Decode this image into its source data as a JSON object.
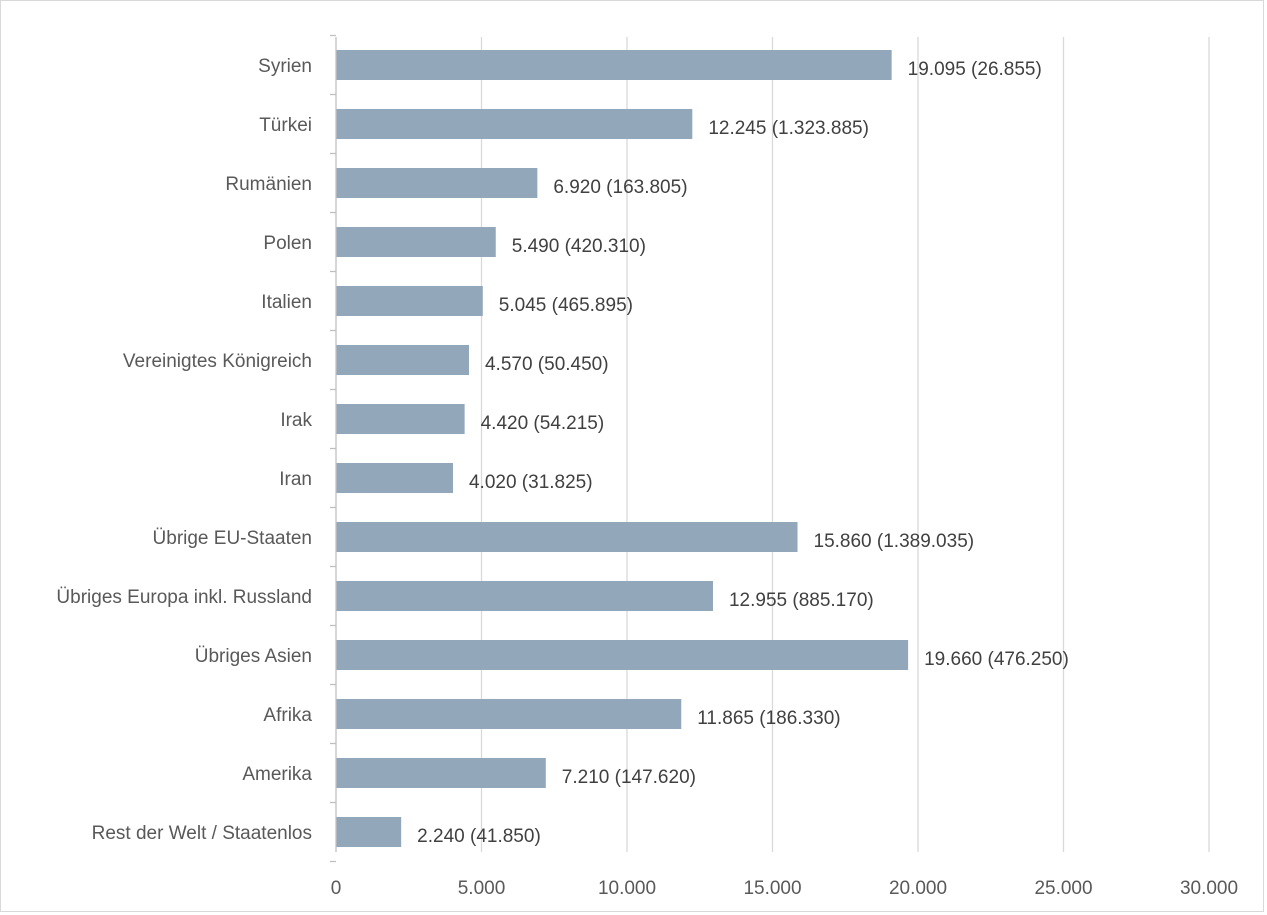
{
  "chart_data": {
    "type": "bar",
    "orientation": "horizontal",
    "title": "",
    "xlabel": "",
    "ylabel": "",
    "categories": [
      "Syrien",
      "Türkei",
      "Rumänien",
      "Polen",
      "Italien",
      "Vereinigtes Königreich",
      "Irak",
      "Iran",
      "Übrige EU-Staaten",
      "Übriges Europa inkl. Russland",
      "Übriges Asien",
      "Afrika",
      "Amerika",
      "Rest der Welt / Staatenlos"
    ],
    "values": [
      19095,
      12245,
      6920,
      5490,
      5045,
      4570,
      4420,
      4020,
      15860,
      12955,
      19660,
      11865,
      7210,
      2240
    ],
    "data_labels": [
      "19.095 (26.855)",
      "12.245 (1.323.885)",
      "6.920 (163.805)",
      "5.490 (420.310)",
      "5.045 (465.895)",
      "4.570 (50.450)",
      "4.420 (54.215)",
      "4.020 (31.825)",
      "15.860 (1.389.035)",
      "12.955 (885.170)",
      "19.660 (476.250)",
      "11.865 (186.330)",
      "7.210 (147.620)",
      "2.240 (41.850)"
    ],
    "xlim": [
      0,
      30000
    ],
    "x_ticks": [
      0,
      5000,
      10000,
      15000,
      20000,
      25000,
      30000
    ],
    "x_tick_labels": [
      "0",
      "5.000",
      "10.000",
      "15.000",
      "20.000",
      "25.000",
      "30.000"
    ],
    "grid": "vertical",
    "legend": "none",
    "bar_color": "#93a7bb"
  }
}
